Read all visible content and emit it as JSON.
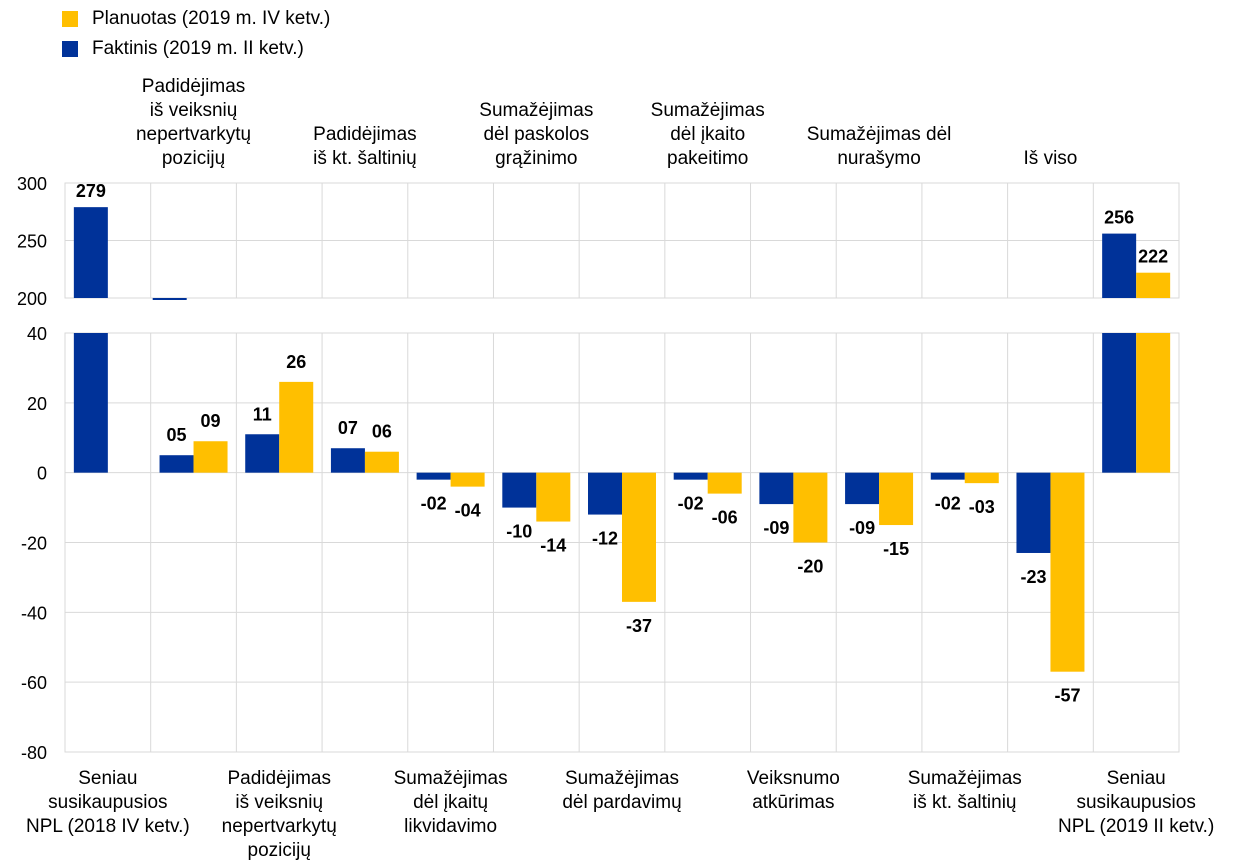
{
  "chart_data": {
    "type": "bar",
    "legend": [
      {
        "name": "Planuotas (2019 m. IV ketv.)",
        "color": "#FFBF00"
      },
      {
        "name": "Faktinis (2019 m. II ketv.)",
        "color": "#003299"
      }
    ],
    "series": [
      {
        "name": "Faktinis (2019 m. II ketv.)",
        "color": "#003299",
        "values": [
          279,
          5,
          11,
          7,
          -2,
          -10,
          -12,
          -2,
          -9,
          -9,
          -2,
          -23,
          256
        ]
      },
      {
        "name": "Planuotas (2019 m. IV ketv.)",
        "color": "#FFBF00",
        "values": [
          null,
          9,
          26,
          6,
          -4,
          -14,
          -37,
          -6,
          -20,
          -15,
          -3,
          -57,
          222
        ]
      }
    ],
    "value_labels": {
      "faktinis": [
        "279",
        "05",
        "11",
        "07",
        "-02",
        "-10",
        "-12",
        "-02",
        "-09",
        "-09",
        "-02",
        "-23",
        "256"
      ],
      "planuotas": [
        "",
        "09",
        "26",
        "06",
        "-04",
        "-14",
        "-37",
        "-06",
        "-20",
        "-15",
        "-03",
        "-57",
        "222"
      ]
    },
    "top_category_labels": [
      "",
      "Padidėjimas\niš veiksnių\nnepertvarkytų\npozicijų",
      "",
      "Padidėjimas\niš kt. šaltinių",
      "",
      "Sumažėjimas\ndėl paskolos\ngrąžinimo",
      "",
      "Sumažėjimas\ndėl įkaito\npakeitimo",
      "",
      "Sumažėjimas dėl\nnurašymo",
      "",
      "Iš viso",
      ""
    ],
    "bottom_category_labels": [
      "Seniau\nsusikaupusios\nNPL (2018 IV ketv.)",
      "",
      "Padidėjimas\niš veiksnių\nnepertvarkytų\npozicijų",
      "",
      "Sumažėjimas\ndėl įkaitų\nlikvidavimo",
      "",
      "Sumažėjimas\ndėl pardavimų",
      "",
      "Veiksnumo\natkūrimas",
      "",
      "Sumažėjimas\niš kt. šaltinių",
      "",
      "Seniau\nsusikaupusios\nNPL (2019 II ketv.)"
    ],
    "upper_panel": {
      "ylim": [
        200,
        300
      ],
      "ticks": [
        "200",
        "250",
        "300"
      ]
    },
    "lower_panel": {
      "ylim": [
        -80,
        40
      ],
      "ticks": [
        "-80",
        "-60",
        "-40",
        "-20",
        "0",
        "20",
        "40"
      ]
    },
    "axis_break": true,
    "grid": true,
    "legend_position": "top-left"
  }
}
